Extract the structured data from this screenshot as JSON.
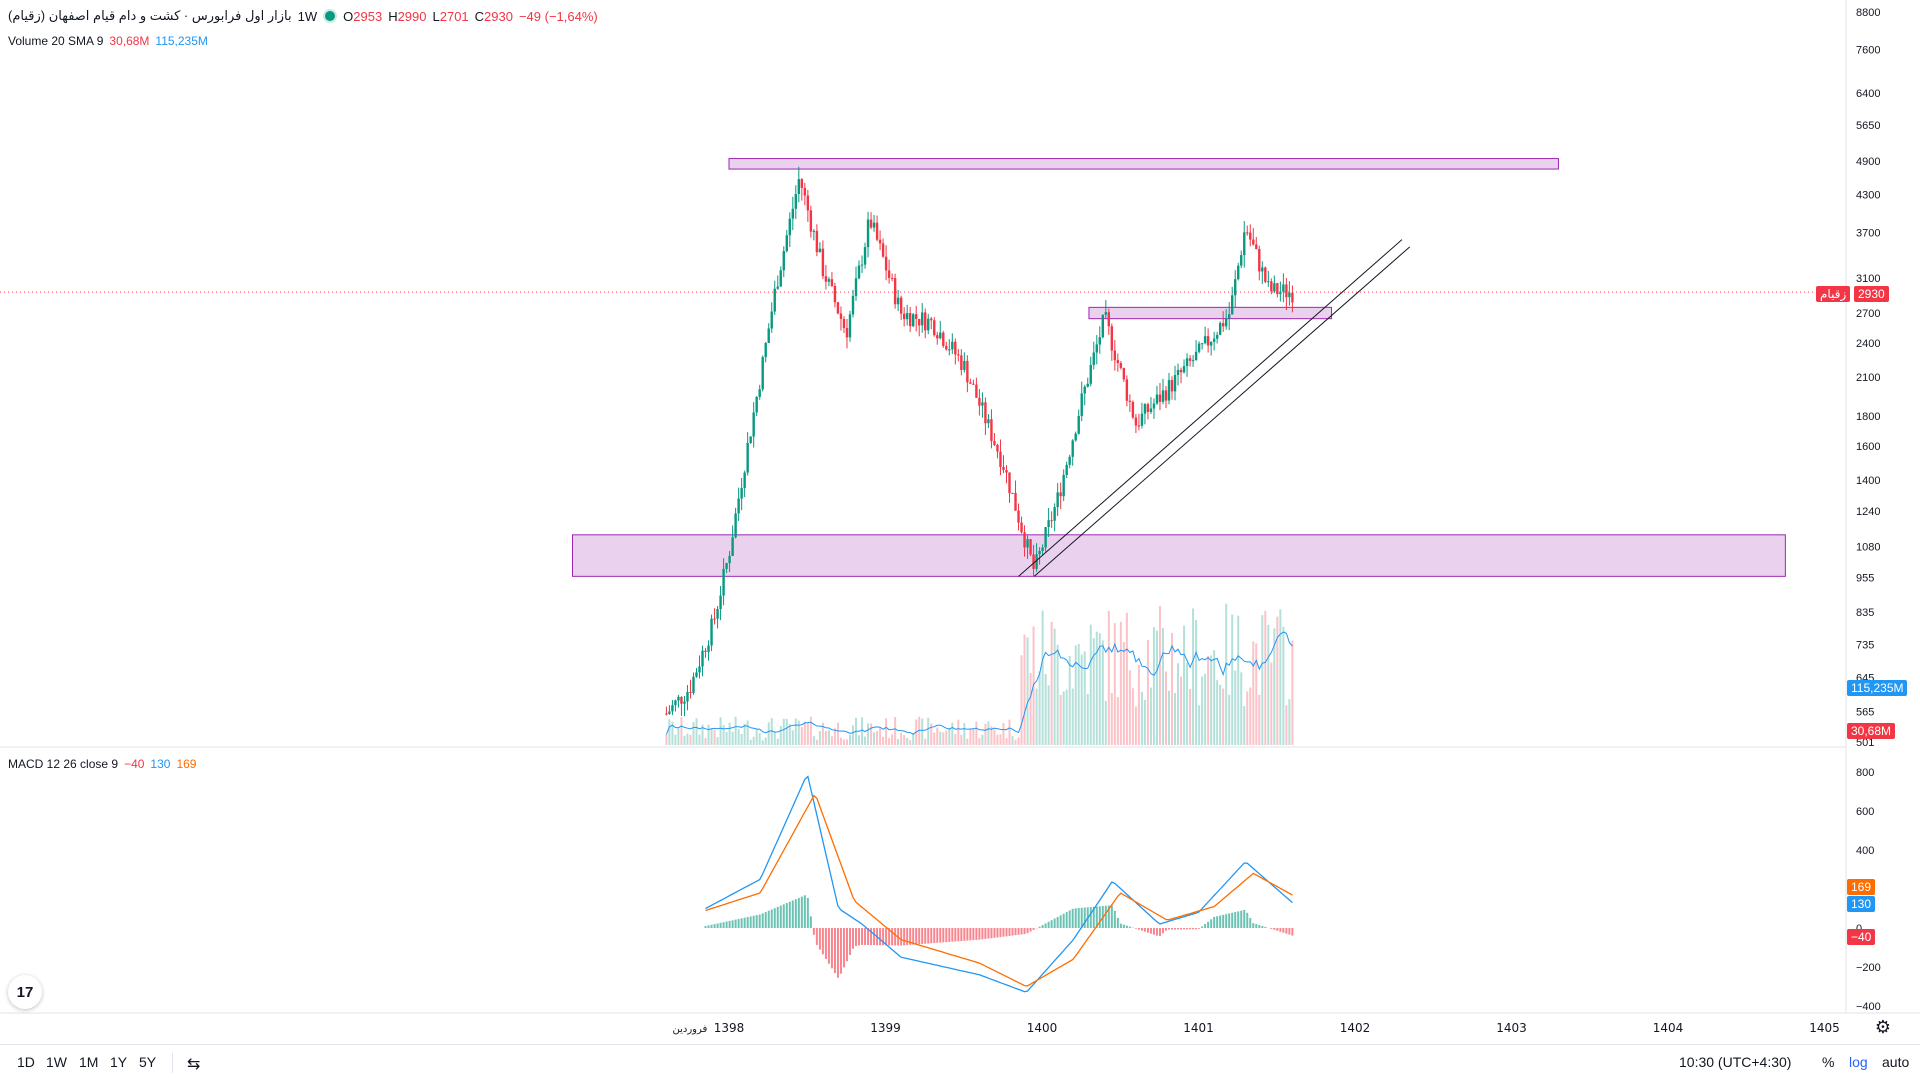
{
  "header": {
    "symbol_title": "بازار اول فرابورس · کشت و دام قیام اصفهان (زقیام)",
    "interval": "1W",
    "o_label": "O",
    "o_value": "2953",
    "h_label": "H",
    "h_value": "2990",
    "l_label": "L",
    "l_value": "2701",
    "c_label": "C",
    "c_value": "2930",
    "change": "−49 (−1,64%)"
  },
  "volume_legend": {
    "name": "Volume 20 SMA 9",
    "value1": "30,68M",
    "value2": "115,235M"
  },
  "macd_legend": {
    "name": "MACD 12 26 close 9",
    "hist": "−40",
    "macd": "130",
    "signal": "169"
  },
  "price_axis": {
    "ticks": [
      "8800",
      "7600",
      "6400",
      "5650",
      "4900",
      "4300",
      "3700",
      "3100",
      "2700",
      "2400",
      "2100",
      "1800",
      "1600",
      "1400",
      "1240",
      "1080",
      "955",
      "835",
      "735",
      "645",
      "565",
      "501"
    ],
    "last_price_tag": "2930",
    "symbol_tag": "زقیام",
    "volume_sma_tag": "115,235M",
    "volume_tag": "30,68M"
  },
  "macd_axis": {
    "ticks": [
      "800",
      "600",
      "400",
      "0",
      "−200",
      "−400"
    ],
    "signal_tag": "169",
    "macd_tag": "130",
    "hist_tag": "−40"
  },
  "time_axis": {
    "labels": [
      "فروردین",
      "1398",
      "1399",
      "1400",
      "1401",
      "1402",
      "1403",
      "1404",
      "1405"
    ]
  },
  "bottom_bar": {
    "timeframes": [
      "1D",
      "1W",
      "1M",
      "1Y",
      "5Y"
    ],
    "clock": "10:30 (UTC+4:30)",
    "percent": "%",
    "log": "log",
    "auto": "auto"
  },
  "logo_text": "17",
  "colors": {
    "up": "#089981",
    "down": "#f23645",
    "macd": "#2196f3",
    "signal": "#ff6d00",
    "zone": "#e1bee7",
    "zone_border": "#9c27b0"
  },
  "chart_data": [
    {
      "type": "candlestick",
      "title": "کشت و دام قیام اصفهان (زقیام)",
      "interval": "1W",
      "scale": "log",
      "x_labels": [
        "فروردین",
        "1398",
        "1399",
        "1400",
        "1401",
        "1402",
        "1403",
        "1404",
        "1405"
      ],
      "ylim": [
        501,
        8800
      ],
      "last": {
        "open": 2953,
        "high": 2990,
        "low": 2701,
        "close": 2930,
        "change": -49,
        "change_pct": -1.64
      },
      "approx_close_path": [
        {
          "t": 1397.6,
          "price": 560
        },
        {
          "t": 1397.75,
          "price": 620
        },
        {
          "t": 1397.9,
          "price": 800
        },
        {
          "t": 1398.0,
          "price": 1050
        },
        {
          "t": 1398.1,
          "price": 1500
        },
        {
          "t": 1398.2,
          "price": 2100
        },
        {
          "t": 1398.3,
          "price": 3000
        },
        {
          "t": 1398.45,
          "price": 4600
        },
        {
          "t": 1398.6,
          "price": 3200
        },
        {
          "t": 1398.75,
          "price": 2500
        },
        {
          "t": 1398.9,
          "price": 3900
        },
        {
          "t": 1399.1,
          "price": 2700
        },
        {
          "t": 1399.3,
          "price": 2600
        },
        {
          "t": 1399.5,
          "price": 2200
        },
        {
          "t": 1399.75,
          "price": 1500
        },
        {
          "t": 1399.95,
          "price": 980
        },
        {
          "t": 1400.1,
          "price": 1300
        },
        {
          "t": 1400.25,
          "price": 1900
        },
        {
          "t": 1400.4,
          "price": 2650
        },
        {
          "t": 1400.6,
          "price": 1750
        },
        {
          "t": 1400.8,
          "price": 2000
        },
        {
          "t": 1401.0,
          "price": 2300
        },
        {
          "t": 1401.2,
          "price": 2700
        },
        {
          "t": 1401.3,
          "price": 3800
        },
        {
          "t": 1401.45,
          "price": 2950
        },
        {
          "t": 1401.6,
          "price": 2930
        }
      ],
      "zones": [
        {
          "from": 1398.0,
          "to": 1403.3,
          "price_low": 4750,
          "price_high": 4950
        },
        {
          "from": 1397.0,
          "to": 1404.75,
          "price_low": 960,
          "price_high": 1130
        },
        {
          "from": 1400.3,
          "to": 1401.85,
          "price_low": 2640,
          "price_high": 2760
        }
      ],
      "trendlines": [
        {
          "from": {
            "t": 1399.85,
            "price": 960
          },
          "to": {
            "t": 1402.3,
            "price": 3600
          }
        },
        {
          "from": {
            "t": 1399.95,
            "price": 960
          },
          "to": {
            "t": 1402.35,
            "price": 3500
          }
        }
      ]
    },
    {
      "type": "bar",
      "title": "Volume 20 SMA 9",
      "sma_last": "115,235M",
      "volume_last": "30,68M"
    },
    {
      "type": "line",
      "title": "MACD 12 26 close 9",
      "ylim": [
        -400,
        800
      ],
      "series": [
        {
          "name": "MACD",
          "values_approx": [
            {
              "t": 1397.85,
              "v": 100
            },
            {
              "t": 1398.2,
              "v": 250
            },
            {
              "t": 1398.5,
              "v": 790
            },
            {
              "t": 1398.7,
              "v": 100
            },
            {
              "t": 1398.85,
              "v": 20
            },
            {
              "t": 1399.1,
              "v": -150
            },
            {
              "t": 1399.6,
              "v": -240
            },
            {
              "t": 1399.9,
              "v": -330
            },
            {
              "t": 1400.2,
              "v": -60
            },
            {
              "t": 1400.45,
              "v": 240
            },
            {
              "t": 1400.75,
              "v": 20
            },
            {
              "t": 1401.0,
              "v": 80
            },
            {
              "t": 1401.3,
              "v": 340
            },
            {
              "t": 1401.6,
              "v": 130
            }
          ]
        },
        {
          "name": "Signal",
          "values_approx": [
            {
              "t": 1397.85,
              "v": 90
            },
            {
              "t": 1398.2,
              "v": 180
            },
            {
              "t": 1398.55,
              "v": 690
            },
            {
              "t": 1398.8,
              "v": 140
            },
            {
              "t": 1399.1,
              "v": -60
            },
            {
              "t": 1399.6,
              "v": -180
            },
            {
              "t": 1399.9,
              "v": -300
            },
            {
              "t": 1400.2,
              "v": -160
            },
            {
              "t": 1400.5,
              "v": 180
            },
            {
              "t": 1400.8,
              "v": 40
            },
            {
              "t": 1401.1,
              "v": 110
            },
            {
              "t": 1401.35,
              "v": 280
            },
            {
              "t": 1401.6,
              "v": 169
            }
          ]
        }
      ],
      "histogram_last": -40
    }
  ]
}
